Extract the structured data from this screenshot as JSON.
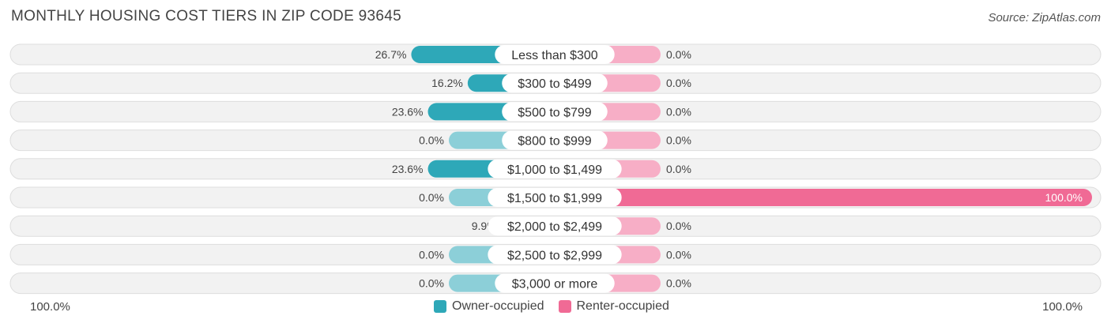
{
  "title": "MONTHLY HOUSING COST TIERS IN ZIP CODE 93645",
  "source": "Source: ZipAtlas.com",
  "colors": {
    "owner_strong": "#2ea8b8",
    "owner_light": "#8ccfd8",
    "renter_strong": "#f06a95",
    "renter_light": "#f7aec6",
    "row_bg": "#f2f2f2",
    "row_border": "#dddddd"
  },
  "chart_data": {
    "type": "bar",
    "orientation": "horizontal-diverging",
    "categories": [
      "Less than $300",
      "$300 to $499",
      "$500 to $799",
      "$800 to $999",
      "$1,000 to $1,499",
      "$1,500 to $1,999",
      "$2,000 to $2,499",
      "$2,500 to $2,999",
      "$3,000 or more"
    ],
    "series": [
      {
        "name": "Owner-occupied",
        "side": "left",
        "values": [
          26.7,
          16.2,
          23.6,
          0.0,
          23.6,
          0.0,
          9.9,
          0.0,
          0.0
        ],
        "labels": [
          "26.7%",
          "16.2%",
          "23.6%",
          "0.0%",
          "23.6%",
          "0.0%",
          "9.9%",
          "0.0%",
          "0.0%"
        ]
      },
      {
        "name": "Renter-occupied",
        "side": "right",
        "values": [
          0.0,
          0.0,
          0.0,
          0.0,
          0.0,
          100.0,
          0.0,
          0.0,
          0.0
        ],
        "labels": [
          "0.0%",
          "0.0%",
          "0.0%",
          "0.0%",
          "0.0%",
          "100.0%",
          "0.0%",
          "0.0%",
          "0.0%"
        ]
      }
    ],
    "xlim": [
      0,
      100
    ],
    "axis_left_label": "100.0%",
    "axis_right_label": "100.0%",
    "legend_position": "bottom-center"
  },
  "legend": {
    "owner": "Owner-occupied",
    "renter": "Renter-occupied"
  }
}
